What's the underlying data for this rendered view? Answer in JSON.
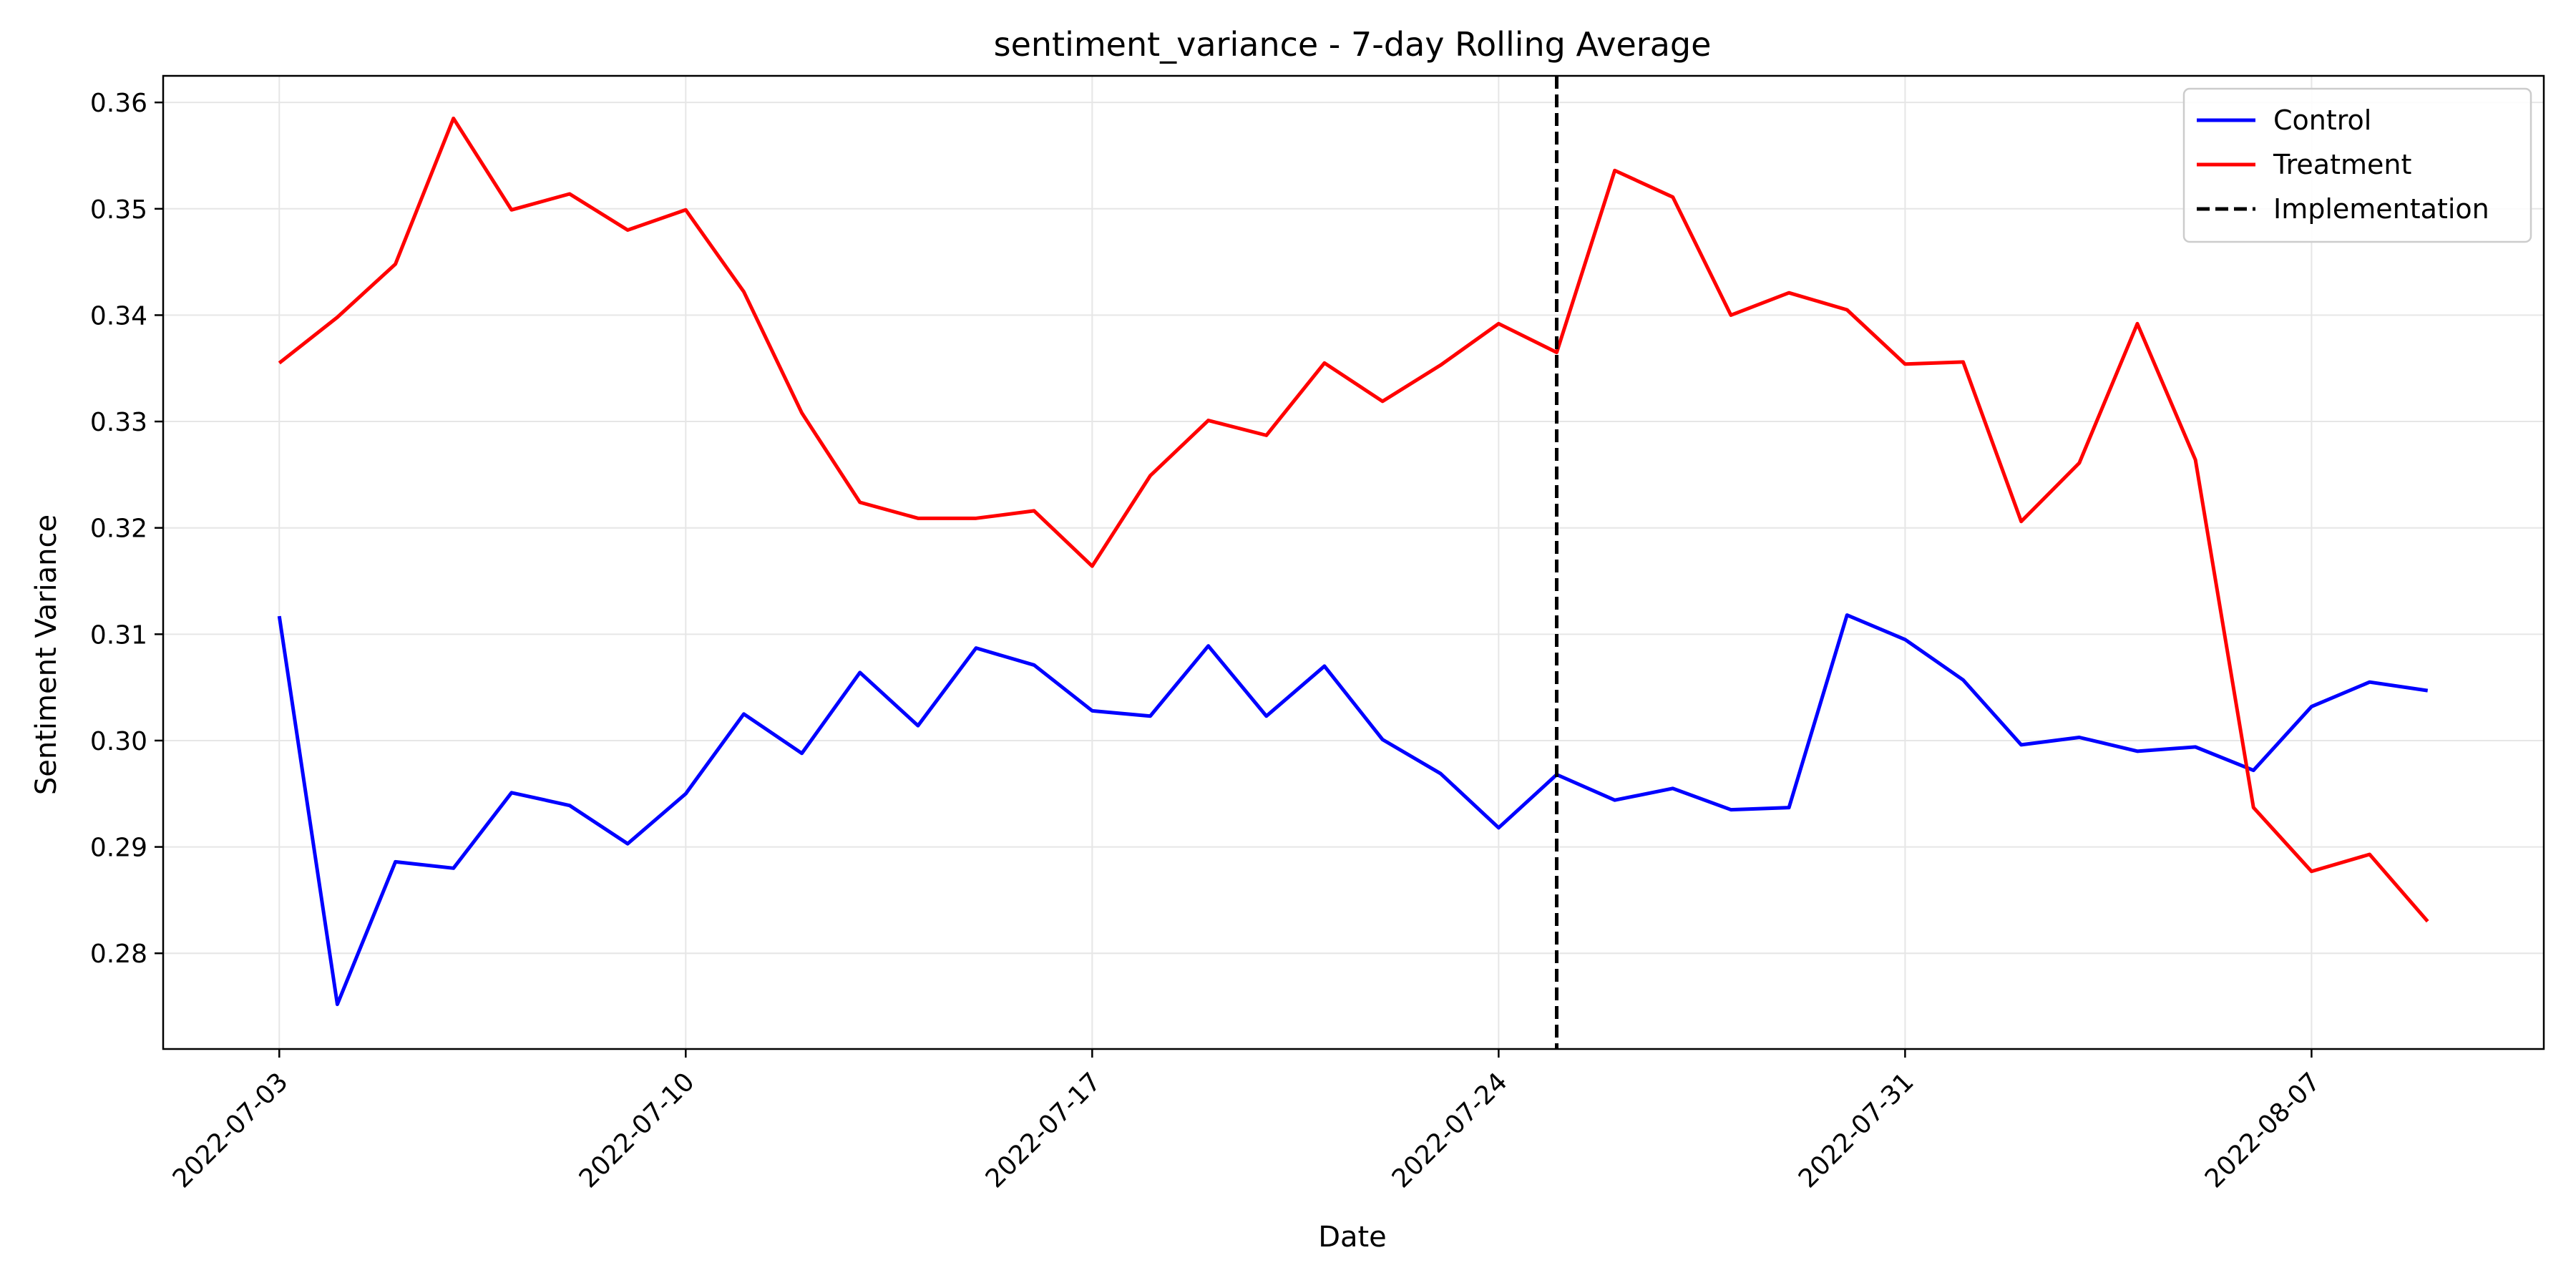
{
  "chart_data": {
    "type": "line",
    "title": "sentiment_variance - 7-day Rolling Average",
    "xlabel": "Date",
    "ylabel": "Sentiment Variance",
    "x_start": "2022-07-03",
    "x_end": "2022-08-09",
    "xlim": [
      "2022-07-01",
      "2022-08-11"
    ],
    "ylim": [
      0.271,
      0.3625
    ],
    "x_ticks": [
      "2022-07-03",
      "2022-07-10",
      "2022-07-17",
      "2022-07-24",
      "2022-07-31",
      "2022-08-07"
    ],
    "y_ticks": [
      0.28,
      0.29,
      0.3,
      0.31,
      0.32,
      0.33,
      0.34,
      0.35,
      0.36
    ],
    "y_tick_labels": [
      "0.28",
      "0.29",
      "0.30",
      "0.31",
      "0.32",
      "0.33",
      "0.34",
      "0.35",
      "0.36"
    ],
    "grid": true,
    "legend": {
      "placement": "top-right"
    },
    "series": [
      {
        "name": "Control",
        "color": "#0000ff",
        "values": [
          0.3117,
          0.2752,
          0.2886,
          0.288,
          0.2951,
          0.2939,
          0.2903,
          0.295,
          0.3025,
          0.2988,
          0.3064,
          0.3014,
          0.3087,
          0.3071,
          0.3028,
          0.3023,
          0.3089,
          0.3023,
          0.307,
          0.3001,
          0.2969,
          0.2918,
          0.2968,
          0.2944,
          0.2955,
          0.2935,
          0.2937,
          0.3118,
          0.3095,
          0.3057,
          0.2996,
          0.3003,
          0.299,
          0.2994,
          0.2972,
          0.3032,
          0.3055,
          0.3047
        ]
      },
      {
        "name": "Treatment",
        "color": "#ff0000",
        "values": [
          0.3355,
          0.3398,
          0.3448,
          0.3585,
          0.3499,
          0.3514,
          0.348,
          0.3499,
          0.3422,
          0.3308,
          0.3224,
          0.3209,
          0.3209,
          0.3216,
          0.3164,
          0.3249,
          0.3301,
          0.3287,
          0.3355,
          0.3319,
          0.3353,
          0.3392,
          0.3365,
          0.3536,
          0.3511,
          0.34,
          0.3421,
          0.3405,
          0.3354,
          0.3356,
          0.3206,
          0.3261,
          0.3392,
          0.3264,
          0.2937,
          0.2877,
          0.2893,
          0.283
        ]
      }
    ],
    "reference_line": {
      "name": "Implementation",
      "x": "2022-07-25",
      "color": "#000000",
      "style": "dashed"
    }
  }
}
